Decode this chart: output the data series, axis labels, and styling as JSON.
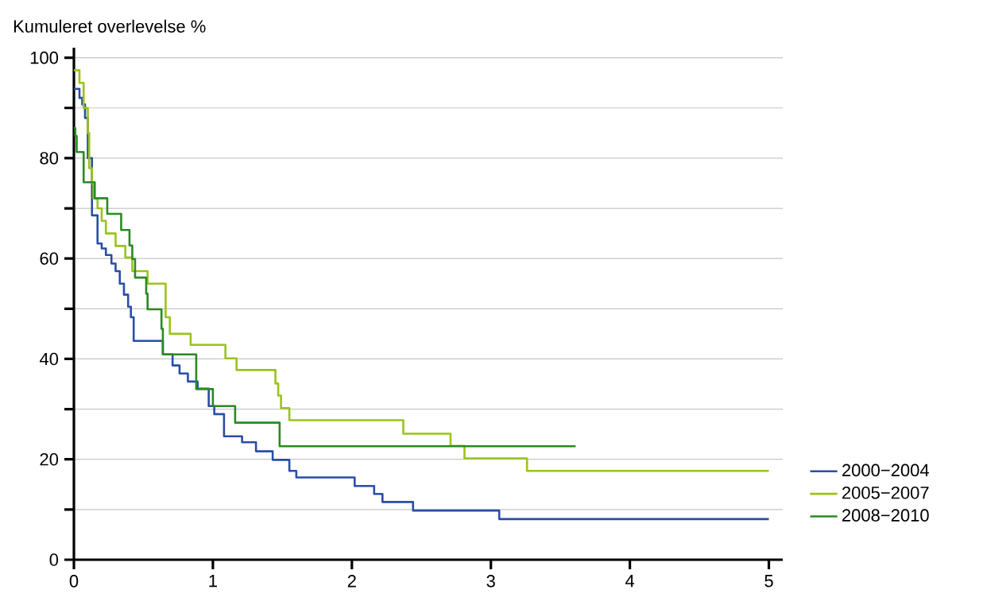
{
  "chart_data": {
    "type": "step",
    "ylabel": "Kumuleret overlevelse %",
    "xlim": [
      0,
      5.1
    ],
    "ylim": [
      0,
      102
    ],
    "xticks": [
      0,
      1,
      2,
      3,
      4,
      5
    ],
    "yticks": [
      0,
      {
        "value": 10,
        "label": null
      },
      20,
      {
        "value": 30,
        "label": null
      },
      40,
      {
        "value": 50,
        "label": null
      },
      60,
      {
        "value": 70,
        "label": null
      },
      80,
      {
        "value": 90,
        "label": null
      },
      100
    ],
    "grid": "y",
    "legend": "right",
    "line_style": "solid",
    "marker": "none",
    "series": [
      {
        "name": "2000−2004",
        "color": "#2a4ea6",
        "x": [
          0,
          0.04,
          0.06,
          0.08,
          0.1,
          0.13,
          0.17,
          0.2,
          0.23,
          0.27,
          0.3,
          0.33,
          0.36,
          0.39,
          0.41,
          0.43,
          0.64,
          0.71,
          0.76,
          0.82,
          0.89,
          0.97,
          1.01,
          1.08,
          1.21,
          1.31,
          1.43,
          1.55,
          1.6,
          2.02,
          2.16,
          2.22,
          2.44,
          3.06,
          5.0
        ],
        "values": [
          93.8,
          92,
          90.7,
          88,
          80,
          68.6,
          63,
          62,
          60.7,
          59,
          57.5,
          55,
          52.8,
          50.4,
          48.3,
          43.6,
          40.9,
          38.7,
          37.1,
          35.5,
          34.1,
          30.6,
          29,
          24.6,
          23.4,
          21.6,
          19.9,
          17.7,
          16.4,
          14.7,
          13.1,
          11.5,
          9.8,
          8.1,
          8.1
        ]
      },
      {
        "name": "2005−2007",
        "color": "#9ac31c",
        "x": [
          0,
          0.04,
          0.07,
          0.1,
          0.11,
          0.13,
          0.14,
          0.17,
          0.2,
          0.23,
          0.3,
          0.37,
          0.42,
          0.53,
          0.66,
          0.69,
          0.84,
          1.09,
          1.17,
          1.45,
          1.47,
          1.49,
          1.55,
          2.37,
          2.71,
          2.81,
          3.26,
          5.0
        ],
        "values": [
          97.5,
          95,
          90,
          85,
          78,
          75,
          72,
          70,
          67.5,
          65,
          62.5,
          60.2,
          57.5,
          55,
          48.3,
          45,
          42.8,
          40.1,
          37.8,
          35.1,
          32.7,
          30.2,
          27.8,
          25.1,
          22.7,
          20.2,
          17.7,
          17.7
        ]
      },
      {
        "name": "2008−2010",
        "color": "#2a8a22",
        "x": [
          0,
          0.01,
          0.02,
          0.07,
          0.15,
          0.24,
          0.34,
          0.4,
          0.42,
          0.44,
          0.52,
          0.53,
          0.63,
          0.64,
          0.88,
          1.0,
          1.16,
          1.48,
          3.61
        ],
        "values": [
          86,
          84.4,
          81.2,
          75.2,
          72,
          68.9,
          65.7,
          62.6,
          59.9,
          56.2,
          53,
          49.9,
          46,
          40.9,
          34,
          30.6,
          27.3,
          22.6,
          22.6
        ]
      }
    ]
  }
}
